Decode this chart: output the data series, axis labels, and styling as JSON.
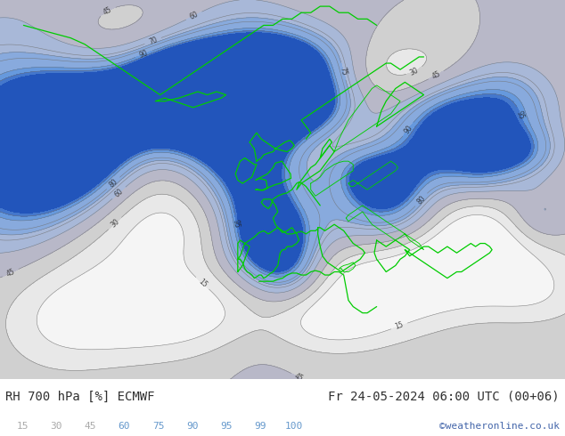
{
  "title_left": "RH 700 hPa [%] ECMWF",
  "title_right": "Fr 24-05-2024 06:00 UTC (00+06)",
  "credit": "©weatheronline.co.uk",
  "colorbar_labels": [
    "15",
    "30",
    "45",
    "60",
    "75",
    "90",
    "95",
    "99",
    "100"
  ],
  "colorbar_label_colors": [
    "#aaaaaa",
    "#aaaaaa",
    "#aaaaaa",
    "#6699cc",
    "#6699cc",
    "#6699cc",
    "#6699cc",
    "#6699cc",
    "#6699cc"
  ],
  "fill_levels": [
    0,
    15,
    30,
    45,
    60,
    75,
    90,
    95,
    99,
    101
  ],
  "fill_colors": [
    "#f5f5f5",
    "#e8e8e8",
    "#d0d0d0",
    "#b8b8c8",
    "#a8b8d8",
    "#88aadd",
    "#6699dd",
    "#4477cc",
    "#2255bb"
  ],
  "contour_levels": [
    15,
    30,
    45,
    60,
    70,
    75,
    80,
    90,
    95
  ],
  "contour_color": "#707070",
  "coastline_color": "#00cc00",
  "border_color": "#00cc00",
  "land_color": "#f0f0f0",
  "ocean_color": "#e8e8ee",
  "bg_color": "#ffffff",
  "label_color": "#303030",
  "credit_color": "#4466aa",
  "font_size_title": 10,
  "font_size_labels": 8,
  "fig_width": 6.34,
  "fig_height": 4.9,
  "dpi": 100,
  "extent": [
    -60,
    60,
    20,
    80
  ],
  "gauss_centers_high": [
    [
      0.08,
      0.72,
      0.14,
      0.18,
      55
    ],
    [
      0.05,
      0.52,
      0.1,
      0.14,
      50
    ],
    [
      0.15,
      0.62,
      0.08,
      0.12,
      45
    ],
    [
      0.3,
      0.7,
      0.1,
      0.08,
      50
    ],
    [
      0.32,
      0.82,
      0.08,
      0.06,
      45
    ],
    [
      0.42,
      0.78,
      0.12,
      0.1,
      55
    ],
    [
      0.4,
      0.65,
      0.08,
      0.18,
      50
    ],
    [
      0.46,
      0.5,
      0.06,
      0.22,
      55
    ],
    [
      0.5,
      0.85,
      0.08,
      0.06,
      50
    ],
    [
      0.54,
      0.72,
      0.06,
      0.06,
      50
    ],
    [
      0.48,
      0.38,
      0.06,
      0.08,
      45
    ],
    [
      0.52,
      0.28,
      0.05,
      0.07,
      40
    ],
    [
      0.6,
      0.4,
      0.07,
      0.08,
      40
    ],
    [
      0.62,
      0.55,
      0.06,
      0.06,
      42
    ],
    [
      0.68,
      0.52,
      0.05,
      0.06,
      38
    ],
    [
      0.72,
      0.42,
      0.07,
      0.07,
      42
    ],
    [
      0.75,
      0.6,
      0.06,
      0.08,
      40
    ],
    [
      0.8,
      0.7,
      0.06,
      0.08,
      42
    ],
    [
      0.85,
      0.55,
      0.05,
      0.06,
      38
    ],
    [
      0.9,
      0.72,
      0.06,
      0.08,
      42
    ],
    [
      0.92,
      0.6,
      0.05,
      0.05,
      38
    ],
    [
      0.95,
      0.42,
      0.05,
      0.06,
      35
    ]
  ],
  "gauss_centers_low": [
    [
      0.2,
      0.88,
      0.12,
      0.08,
      -35
    ],
    [
      0.18,
      0.35,
      0.1,
      0.12,
      -30
    ],
    [
      0.28,
      0.55,
      0.08,
      0.1,
      -28
    ],
    [
      0.35,
      0.4,
      0.1,
      0.08,
      -32
    ],
    [
      0.38,
      0.2,
      0.1,
      0.08,
      -30
    ],
    [
      0.55,
      0.55,
      0.1,
      0.1,
      -28
    ],
    [
      0.58,
      0.35,
      0.08,
      0.08,
      -30
    ],
    [
      0.65,
      0.22,
      0.12,
      0.08,
      -35
    ],
    [
      0.72,
      0.82,
      0.08,
      0.06,
      -28
    ],
    [
      0.78,
      0.3,
      0.1,
      0.08,
      -32
    ],
    [
      0.82,
      0.42,
      0.08,
      0.08,
      -28
    ],
    [
      0.88,
      0.35,
      0.1,
      0.08,
      -30
    ],
    [
      0.58,
      0.15,
      0.08,
      0.06,
      -25
    ],
    [
      0.25,
      0.15,
      0.1,
      0.08,
      -28
    ],
    [
      0.1,
      0.15,
      0.08,
      0.1,
      -25
    ],
    [
      0.95,
      0.22,
      0.07,
      0.06,
      -22
    ],
    [
      0.46,
      0.88,
      0.08,
      0.05,
      -20
    ]
  ],
  "base_rh": 45.0
}
